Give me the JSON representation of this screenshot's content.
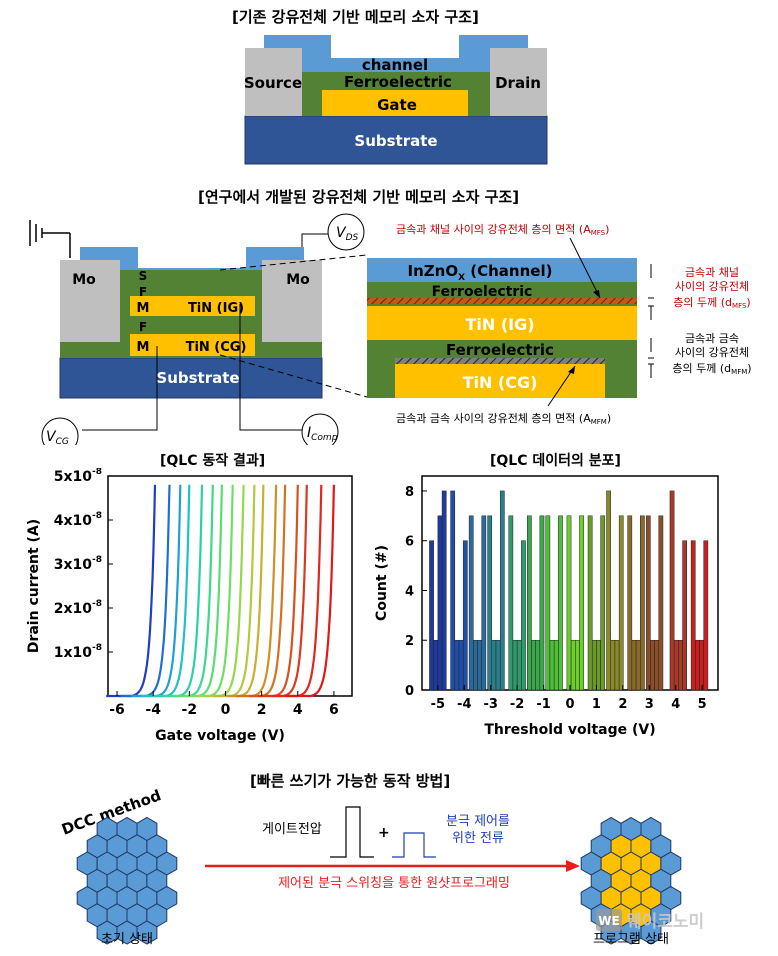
{
  "section1": {
    "title": "[기존 강유전체 기반 메모리 소자 구조]",
    "labels": {
      "channel": "channel",
      "source": "Source",
      "drain": "Drain",
      "ferroelectric": "Ferroelectric",
      "gate": "Gate",
      "substrate": "Substrate"
    }
  },
  "section2": {
    "title": "[연구에서 개발된 강유전체 기반 메모리 소자 구조]",
    "left": {
      "mo_left": "Mo",
      "mo_right": "Mo",
      "s": "S",
      "f1": "F",
      "m1": "M",
      "f2": "F",
      "m2": "M",
      "tin_ig": "TiN (IG)",
      "tin_cg": "TiN (CG)",
      "substrate": "Substrate"
    },
    "terminals": {
      "vds": "V",
      "vds_sub": "DS",
      "vcg": "V",
      "vcg_sub": "CG",
      "icomp": "I",
      "icomp_sub": "Comp"
    },
    "zoom": {
      "channel_main": "InZnO",
      "channel_sub": "X",
      "channel_suffix": " (Channel)",
      "fe1": "Ferroelectric",
      "tin_ig": "TiN (IG)",
      "fe2": "Ferroelectric",
      "tin_cg": "TiN (CG)",
      "annot_amfs": "금속과 채널 사이의 강유전체 층의 면적 (A",
      "annot_amfs_sub": "MFS",
      "annot_amfs_end": ")",
      "annot_dmfs_1": "금속과 채널",
      "annot_dmfs_2": "사이의 강유전체",
      "annot_dmfs_3": "층의 두께 (d",
      "annot_dmfs_sub": "MFS",
      "annot_dmfs_end": ")",
      "annot_dmfm_1": "금속과 금속",
      "annot_dmfm_2": "사이의 강유전체",
      "annot_dmfm_3": "층의 두께 (d",
      "annot_dmfm_sub": "MFM",
      "annot_dmfm_end": ")",
      "annot_amfm": "금속과 금속 사이의 강유전체 층의 면적 (A",
      "annot_amfm_sub": "MFM",
      "annot_amfm_end": ")"
    }
  },
  "chart_data": [
    {
      "type": "line",
      "title": "[QLC 동작 결과]",
      "xlabel": "Gate voltage (V)",
      "ylabel": "Drain current (A)",
      "xlim": [
        -6.5,
        7
      ],
      "ylim": [
        0,
        5e-08
      ],
      "xticks": [
        "-6",
        "-4",
        "-2",
        "0",
        "2",
        "4",
        "6"
      ],
      "xtick_values": [
        -6,
        -4,
        -2,
        0,
        2,
        4,
        6
      ],
      "ytick_values": [
        1e-08,
        2e-08,
        3e-08,
        4e-08,
        5e-08
      ],
      "ytick_base": "1",
      "ytick_mid": "x10",
      "ytick_exp": "-8",
      "ytick_mantissas": [
        "1",
        "2",
        "3",
        "4",
        "5"
      ],
      "curve_onset_voltages": [
        -4.8,
        -4.0,
        -3.4,
        -2.9,
        -2.2,
        -1.6,
        -1.1,
        -0.5,
        0.1,
        0.7,
        1.2,
        1.9,
        2.4,
        3.1,
        3.6,
        4.4,
        5.1
      ],
      "colors": [
        "#1f3fbf",
        "#1f6fd0",
        "#1f9fd8",
        "#1fc0c8",
        "#29d0a8",
        "#3cd88c",
        "#58dc74",
        "#6ee060",
        "#94d84c",
        "#b4c840",
        "#c8b030",
        "#d09028",
        "#d47020",
        "#d85020",
        "#dc3820",
        "#e02820",
        "#e01818"
      ]
    },
    {
      "type": "bar",
      "title": "[QLC 데이터의 분포]",
      "xlabel": "Threshold voltage (V)",
      "ylabel": "Count (#)",
      "xlim": [
        -5.6,
        5.6
      ],
      "ylim": [
        0,
        8.6
      ],
      "xticks": [
        "-5",
        "-4",
        "-3",
        "-2",
        "-1",
        "0",
        "1",
        "2",
        "3",
        "4",
        "5"
      ],
      "xtick_values": [
        -5,
        -4,
        -3,
        -2,
        -1,
        0,
        1,
        2,
        3,
        4,
        5
      ],
      "yticks": [
        "0",
        "2",
        "4",
        "6",
        "8"
      ],
      "ytick_values": [
        0,
        2,
        4,
        6,
        8
      ],
      "groups": [
        {
          "center": -5.0,
          "values": [
            6,
            2,
            7,
            8
          ],
          "color": "#1f3a9a"
        },
        {
          "center": -4.2,
          "values": [
            8,
            2,
            2,
            6
          ],
          "color": "#1f4fa8"
        },
        {
          "center": -3.5,
          "values": [
            7,
            2,
            2,
            7
          ],
          "color": "#2a6a9a"
        },
        {
          "center": -2.8,
          "values": [
            7,
            2,
            2,
            8
          ],
          "color": "#2a7f8a"
        },
        {
          "center": -2.0,
          "values": [
            7,
            2,
            2,
            6
          ],
          "color": "#2f9a6a"
        },
        {
          "center": -1.3,
          "values": [
            7,
            2,
            2,
            7
          ],
          "color": "#3aa84a"
        },
        {
          "center": -0.6,
          "values": [
            7,
            2,
            2,
            7
          ],
          "color": "#4fbf3a"
        },
        {
          "center": 0.2,
          "values": [
            7,
            2,
            2,
            7
          ],
          "color": "#6acf2a"
        },
        {
          "center": 1.0,
          "values": [
            7,
            2,
            2,
            7
          ],
          "color": "#6a9a2a"
        },
        {
          "center": 1.7,
          "values": [
            8,
            2,
            2,
            7
          ],
          "color": "#8a8a2a"
        },
        {
          "center": 2.5,
          "values": [
            7,
            2,
            2,
            7
          ],
          "color": "#8a6a2a"
        },
        {
          "center": 3.2,
          "values": [
            7,
            2,
            2,
            7
          ],
          "color": "#8a4f2a"
        },
        {
          "center": 4.1,
          "values": [
            8,
            2,
            2,
            6
          ],
          "color": "#a83a2a"
        },
        {
          "center": 4.9,
          "values": [
            6,
            2,
            2,
            6
          ],
          "color": "#c81f1f"
        }
      ]
    }
  ],
  "section4": {
    "title": "[빠른 쓰기가 가능한 동작 방법]",
    "dcc": "DCC method",
    "gate_voltage": "게이트전압",
    "plus": "+",
    "pol_1": "분극 제어를",
    "pol_2": "위한 전류",
    "arrow_label": "제어된 분극 스위칭을 통한 원샷프로그래밍",
    "initial": "초기 상태",
    "programmed": "프로그램 상태",
    "watermark": "웨이코노미",
    "watermark_icon": "WE",
    "colors": {
      "blue": "#5b9bd5",
      "gold": "#ffc000",
      "red": "#e81e1e",
      "navy": "#1f3fb0"
    }
  }
}
